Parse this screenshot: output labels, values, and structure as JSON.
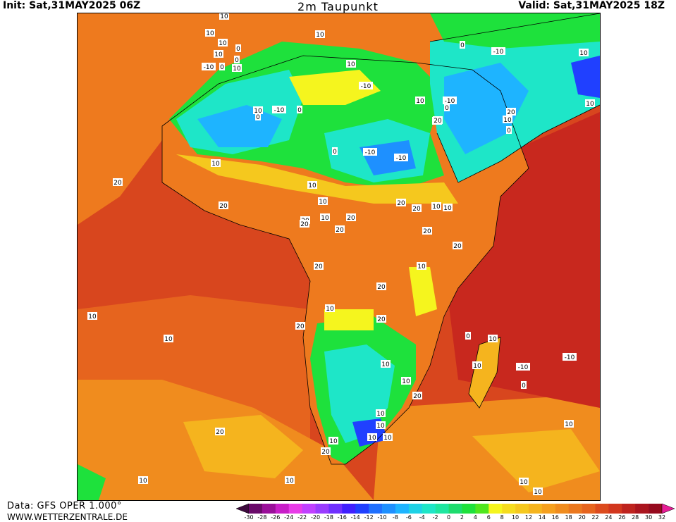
{
  "header": {
    "init": "Init: Sat,31MAY2025 06Z",
    "title": "2m Taupunkt",
    "valid": "Valid: Sat,31MAY2025 18Z"
  },
  "footer": {
    "data_source": "Data: GFS OPER 1.000°",
    "website": "WWW.WETTERZENTRALE.DE"
  },
  "legend": {
    "ticks": [
      "-30",
      "-28",
      "-26",
      "-24",
      "-22",
      "-20",
      "-18",
      "-16",
      "-14",
      "-12",
      "-10",
      "-8",
      "-6",
      "-4",
      "-2",
      "0",
      "2",
      "4",
      "6",
      "8",
      "10",
      "12",
      "14",
      "16",
      "18",
      "20",
      "22",
      "24",
      "26",
      "28",
      "30",
      "32"
    ],
    "colors": [
      "#3d0a3d",
      "#6a0a6a",
      "#9a0f9a",
      "#c81ec8",
      "#e83ce8",
      "#c040ff",
      "#9a3cff",
      "#7030ff",
      "#4020ff",
      "#2040ff",
      "#2070ff",
      "#1e90ff",
      "#1eb4ff",
      "#1ed2e6",
      "#1ee6c8",
      "#1ee6a0",
      "#1edc6e",
      "#1ee13c",
      "#50e61e",
      "#f5f51e",
      "#f5dc1e",
      "#f5c81e",
      "#f5b41e",
      "#f5a01e",
      "#f08c1e",
      "#eb781e",
      "#e6641e",
      "#dc4b1e",
      "#d2371e",
      "#be231e",
      "#aa141e",
      "#960a1e",
      "#e61e96"
    ]
  },
  "map_labels": [
    {
      "text": "10"
    },
    {
      "text": "10"
    },
    {
      "text": "10"
    },
    {
      "text": "10"
    },
    {
      "text": "0"
    },
    {
      "text": "10"
    },
    {
      "text": "-10"
    },
    {
      "text": "0"
    },
    {
      "text": "0"
    },
    {
      "text": "10"
    },
    {
      "text": "0"
    },
    {
      "text": "-10"
    },
    {
      "text": "0"
    },
    {
      "text": "10"
    },
    {
      "text": "10"
    },
    {
      "text": "-10"
    },
    {
      "text": "10"
    },
    {
      "text": "0"
    },
    {
      "text": "-10"
    },
    {
      "text": "0"
    },
    {
      "text": "-10"
    },
    {
      "text": "10"
    },
    {
      "text": "20"
    },
    {
      "text": "10"
    },
    {
      "text": "0"
    },
    {
      "text": "-10"
    },
    {
      "text": "-10"
    },
    {
      "text": "0"
    },
    {
      "text": "10"
    },
    {
      "text": "20"
    },
    {
      "text": "10"
    },
    {
      "text": "20"
    },
    {
      "text": "20"
    },
    {
      "text": "20"
    },
    {
      "text": "10"
    },
    {
      "text": "10"
    },
    {
      "text": "20"
    },
    {
      "text": "20"
    },
    {
      "text": "20"
    },
    {
      "text": "20"
    },
    {
      "text": "20"
    },
    {
      "text": "20"
    },
    {
      "text": "10"
    },
    {
      "text": "20"
    },
    {
      "text": "10"
    },
    {
      "text": "10"
    },
    {
      "text": "20"
    },
    {
      "text": "20"
    },
    {
      "text": "10"
    },
    {
      "text": "20"
    },
    {
      "text": "20"
    },
    {
      "text": "10"
    },
    {
      "text": "10"
    },
    {
      "text": "0"
    },
    {
      "text": "10"
    },
    {
      "text": "10"
    },
    {
      "text": "-10"
    },
    {
      "text": "0"
    },
    {
      "text": "-10"
    },
    {
      "text": "10"
    },
    {
      "text": "10"
    },
    {
      "text": "20"
    },
    {
      "text": "10"
    },
    {
      "text": "10"
    },
    {
      "text": "10"
    },
    {
      "text": "10"
    },
    {
      "text": "20"
    },
    {
      "text": "20"
    },
    {
      "text": "10"
    },
    {
      "text": "10"
    },
    {
      "text": "10"
    },
    {
      "text": "10"
    },
    {
      "text": "10"
    },
    {
      "text": "10"
    },
    {
      "text": "10"
    },
    {
      "text": "10"
    }
  ]
}
